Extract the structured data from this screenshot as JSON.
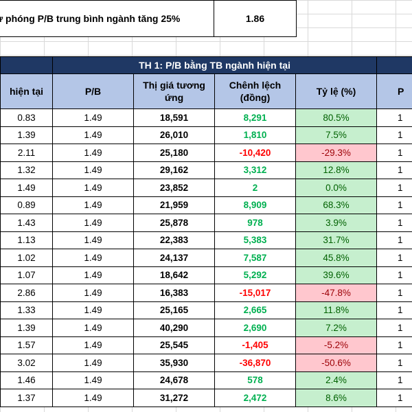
{
  "scenario": {
    "label": "ư phóng P/B trung bình ngành tăng 25%",
    "value": "1.86"
  },
  "th1_title": "TH 1: P/B bằng TB ngành hiện tại",
  "headers": {
    "current": "hiện tại",
    "pb": "P/B",
    "fair_price": "Thị giá tương ứng",
    "diff": "Chênh lệch (đồng)",
    "ratio": "Tỷ lệ (%)",
    "edge": "P"
  },
  "rows": [
    {
      "current": "0.83",
      "pb": "1.49",
      "fair": "18,591",
      "diff": "8,291",
      "ratio": "80.5%",
      "edge": "1",
      "sign": "pos"
    },
    {
      "current": "1.39",
      "pb": "1.49",
      "fair": "26,010",
      "diff": "1,810",
      "ratio": "7.5%",
      "edge": "1",
      "sign": "pos"
    },
    {
      "current": "2.11",
      "pb": "1.49",
      "fair": "25,180",
      "diff": "-10,420",
      "ratio": "-29.3%",
      "edge": "1",
      "sign": "neg"
    },
    {
      "current": "1.32",
      "pb": "1.49",
      "fair": "29,162",
      "diff": "3,312",
      "ratio": "12.8%",
      "edge": "1",
      "sign": "pos"
    },
    {
      "current": "1.49",
      "pb": "1.49",
      "fair": "23,852",
      "diff": "2",
      "ratio": "0.0%",
      "edge": "1",
      "sign": "pos"
    },
    {
      "current": "0.89",
      "pb": "1.49",
      "fair": "21,959",
      "diff": "8,909",
      "ratio": "68.3%",
      "edge": "1",
      "sign": "pos"
    },
    {
      "current": "1.43",
      "pb": "1.49",
      "fair": "25,878",
      "diff": "978",
      "ratio": "3.9%",
      "edge": "1",
      "sign": "pos"
    },
    {
      "current": "1.13",
      "pb": "1.49",
      "fair": "22,383",
      "diff": "5,383",
      "ratio": "31.7%",
      "edge": "1",
      "sign": "pos"
    },
    {
      "current": "1.02",
      "pb": "1.49",
      "fair": "24,137",
      "diff": "7,587",
      "ratio": "45.8%",
      "edge": "1",
      "sign": "pos"
    },
    {
      "current": "1.07",
      "pb": "1.49",
      "fair": "18,642",
      "diff": "5,292",
      "ratio": "39.6%",
      "edge": "1",
      "sign": "pos"
    },
    {
      "current": "2.86",
      "pb": "1.49",
      "fair": "16,383",
      "diff": "-15,017",
      "ratio": "-47.8%",
      "edge": "1",
      "sign": "neg"
    },
    {
      "current": "1.33",
      "pb": "1.49",
      "fair": "25,165",
      "diff": "2,665",
      "ratio": "11.8%",
      "edge": "1",
      "sign": "pos"
    },
    {
      "current": "1.39",
      "pb": "1.49",
      "fair": "40,290",
      "diff": "2,690",
      "ratio": "7.2%",
      "edge": "1",
      "sign": "pos"
    },
    {
      "current": "1.57",
      "pb": "1.49",
      "fair": "25,545",
      "diff": "-1,405",
      "ratio": "-5.2%",
      "edge": "1",
      "sign": "neg"
    },
    {
      "current": "3.02",
      "pb": "1.49",
      "fair": "35,930",
      "diff": "-36,870",
      "ratio": "-50.6%",
      "edge": "1",
      "sign": "neg"
    },
    {
      "current": "1.46",
      "pb": "1.49",
      "fair": "24,678",
      "diff": "578",
      "ratio": "2.4%",
      "edge": "1",
      "sign": "pos"
    },
    {
      "current": "1.37",
      "pb": "1.49",
      "fair": "31,272",
      "diff": "2,472",
      "ratio": "8.6%",
      "edge": "1",
      "sign": "pos"
    }
  ]
}
